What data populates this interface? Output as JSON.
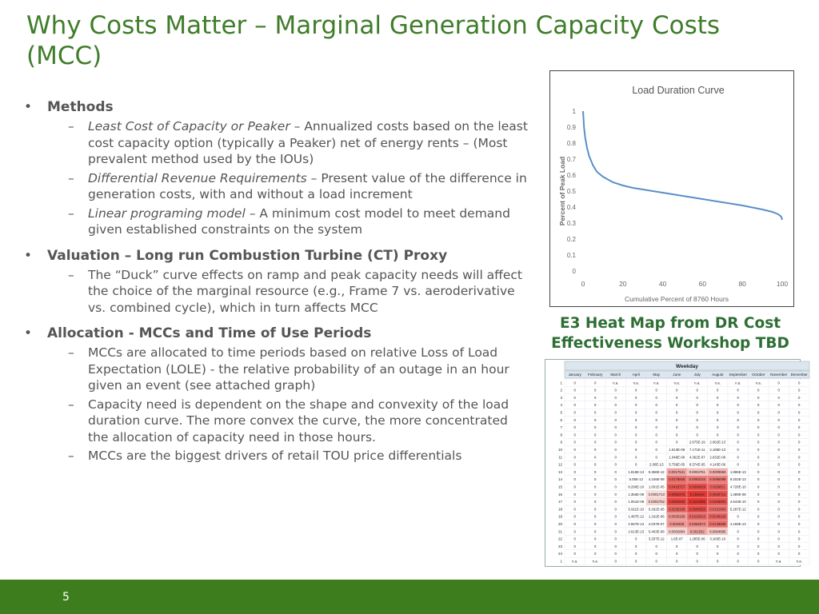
{
  "slide": {
    "title": "Why Costs Matter – Marginal Generation Capacity Costs (MCC)",
    "page_number": "5"
  },
  "body": [
    {
      "heading": "Methods",
      "subs": [
        {
          "italic": "Least Cost of Capacity or Peaker",
          "text": " – Annualized costs based on the least cost capacity option (typically a Peaker) net of energy rents – (Most prevalent method used by the IOUs)"
        },
        {
          "italic": "Differential Revenue Requirements",
          "text": " – Present value of the difference in generation costs, with and without a load increment"
        },
        {
          "italic": "Linear programing model",
          "text": " – A minimum cost model to meet demand given established constraints on the system"
        }
      ]
    },
    {
      "heading": "Valuation – Long run Combustion Turbine (CT) Proxy",
      "subs": [
        {
          "italic": "",
          "text": "The “Duck” curve effects on ramp and peak capacity needs will affect the choice of the marginal resource (e.g., Frame 7 vs. aeroderivative vs. combined cycle), which in turn affects MCC"
        }
      ]
    },
    {
      "heading": "Allocation - MCCs and Time of Use Periods",
      "subs": [
        {
          "italic": "",
          "text": "MCCs are allocated to time periods based on relative Loss of Load Expectation (LOLE) - the relative probability of an outage in an hour given an event (see attached graph)"
        },
        {
          "italic": "",
          "text": "Capacity need is dependent on the shape and convexity of the load duration curve. The more convex the curve, the more concentrated the allocation of capacity need in those hours."
        },
        {
          "italic": "",
          "text": "MCCs are the biggest drivers of retail TOU price differentials"
        }
      ]
    }
  ],
  "bullet_char": "•",
  "dash_char": "–",
  "chart_data": {
    "type": "line",
    "title": "Load Duration Curve",
    "xlabel": "Cumulative Percent of 8760 Hours",
    "ylabel": "Percent of Peak Load",
    "xlim": [
      0,
      100
    ],
    "ylim": [
      0,
      1
    ],
    "xticks": [
      "0",
      "20",
      "40",
      "60",
      "80",
      "100"
    ],
    "yticks": [
      "0",
      "0.1",
      "0.2",
      "0.3",
      "0.4",
      "0.5",
      "0.6",
      "0.7",
      "0.8",
      "0.9",
      "1"
    ],
    "grid": false,
    "color": "#5b8fc7",
    "series": [
      {
        "x": [
          0,
          0.5,
          1,
          2,
          3,
          5,
          7,
          10,
          15,
          20,
          25,
          30,
          40,
          50,
          60,
          70,
          80,
          90,
          95,
          98,
          99.5,
          100
        ],
        "y": [
          1.0,
          0.9,
          0.84,
          0.77,
          0.72,
          0.66,
          0.62,
          0.59,
          0.555,
          0.535,
          0.52,
          0.51,
          0.49,
          0.47,
          0.45,
          0.43,
          0.41,
          0.385,
          0.37,
          0.355,
          0.34,
          0.32
        ]
      }
    ]
  },
  "heatmap_caption": "E3 Heat Map from DR Cost Effectiveness Workshop TBD",
  "heatmap": {
    "group_header": "Weekday",
    "months": [
      "January",
      "February",
      "March",
      "April",
      "May",
      "June",
      "July",
      "August",
      "September",
      "October",
      "November",
      "December"
    ],
    "rows": [
      [
        "1",
        "0",
        "0",
        "n.a.",
        "n.a.",
        "n.a.",
        "n.a.",
        "n.a.",
        "n.a.",
        "n.a.",
        "n.a.",
        "0",
        "0"
      ],
      [
        "2",
        "0",
        "0",
        "0",
        "0",
        "0",
        "0",
        "0",
        "0",
        "0",
        "0",
        "0",
        "0"
      ],
      [
        "3",
        "0",
        "0",
        "0",
        "0",
        "0",
        "0",
        "0",
        "0",
        "0",
        "0",
        "0",
        "0"
      ],
      [
        "4",
        "0",
        "0",
        "0",
        "0",
        "0",
        "0",
        "0",
        "0",
        "0",
        "0",
        "0",
        "0"
      ],
      [
        "5",
        "0",
        "0",
        "0",
        "0",
        "0",
        "0",
        "0",
        "0",
        "0",
        "0",
        "0",
        "0"
      ],
      [
        "6",
        "0",
        "0",
        "0",
        "0",
        "0",
        "0",
        "0",
        "0",
        "0",
        "0",
        "0",
        "0"
      ],
      [
        "7",
        "0",
        "0",
        "0",
        "0",
        "0",
        "0",
        "0",
        "0",
        "0",
        "0",
        "0",
        "0"
      ],
      [
        "8",
        "0",
        "0",
        "0",
        "0",
        "0",
        "0",
        "0",
        "0",
        "0",
        "0",
        "0",
        "0"
      ],
      [
        "9",
        "0",
        "0",
        "0",
        "0",
        "0",
        "0",
        "2.675E-19",
        "2.062E-13",
        "0",
        "0",
        "0",
        "0"
      ],
      [
        "10",
        "0",
        "0",
        "0",
        "0",
        "0",
        "1.513E-08",
        "7.171E-11",
        "2.185E-13",
        "0",
        "0",
        "0",
        "0"
      ],
      [
        "11",
        "0",
        "0",
        "0",
        "0",
        "0",
        "1.049E-06",
        "4.362E-07",
        "2.632E-09",
        "0",
        "0",
        "0",
        "0"
      ],
      [
        "12",
        "0",
        "0",
        "0",
        "0",
        "2.00E-13",
        "5.756E-05",
        "8.374E-05",
        "4.143E-06",
        "0",
        "0",
        "0",
        "0"
      ],
      [
        "13",
        "0",
        "0",
        "0",
        "1.816E-13",
        "9.366E-12",
        "0.0017541",
        "0.0004761",
        "0.0009559",
        "1.886E-13",
        "0",
        "0",
        "0"
      ],
      [
        "14",
        "0",
        "0",
        "0",
        "5.05E-12",
        "4.108E-08",
        "0.0175846",
        "0.0093215",
        "0.0095088",
        "9.202E-13",
        "0",
        "0",
        "0"
      ],
      [
        "15",
        "0",
        "0",
        "0",
        "8.296E-10",
        "1.001E-05",
        "0.0418717",
        "0.0609029",
        "0.026851",
        "4.728E-10",
        "0",
        "0",
        "0"
      ],
      [
        "16",
        "0",
        "0",
        "0",
        "1.356E-08",
        "0.0001713",
        "0.0950275",
        "0.154644",
        "0.0529714",
        "1.389E-08",
        "0",
        "0",
        "0"
      ],
      [
        "17",
        "0",
        "0",
        "0",
        "1.051E-08",
        "0.0002752",
        "0.0863939",
        "0.1643998",
        "0.0468803",
        "2.643E-10",
        "0",
        "0",
        "0"
      ],
      [
        "18",
        "0",
        "0",
        "0",
        "5.911E-10",
        "5.262E-05",
        "0.0235108",
        "0.0645629",
        "0.0151693",
        "5.297E-12",
        "0",
        "0",
        "0"
      ],
      [
        "19",
        "0",
        "0",
        "0",
        "1.487E-12",
        "1.162E-06",
        "0.0033159",
        "0.0219313",
        "0.0248126",
        "0",
        "0",
        "0",
        "0"
      ],
      [
        "20",
        "0",
        "0",
        "0",
        "2.557E-13",
        "2.037E-07",
        "0.003468",
        "0.0056573",
        "0.0148689",
        "4.159E-13",
        "0",
        "0",
        "0"
      ],
      [
        "21",
        "0",
        "0",
        "0",
        "2.613E-13",
        "5.463E-08",
        "0.0002864",
        "0.001502",
        "0.0004685",
        "0",
        "0",
        "0",
        "0"
      ],
      [
        "22",
        "0",
        "0",
        "0",
        "0",
        "3.257E-12",
        "1.6E-07",
        "1.285E-06",
        "3.183E-10",
        "0",
        "0",
        "0",
        "0"
      ],
      [
        "23",
        "0",
        "0",
        "0",
        "0",
        "0",
        "0",
        "0",
        "0",
        "0",
        "0",
        "0",
        "0"
      ],
      [
        "24",
        "0",
        "0",
        "0",
        "0",
        "0",
        "0",
        "0",
        "0",
        "0",
        "0",
        "0",
        "0"
      ],
      [
        "1",
        "n.a.",
        "n.a.",
        "0",
        "0",
        "0",
        "0",
        "0",
        "0",
        "0",
        "0",
        "n.a.",
        "n.a."
      ]
    ]
  }
}
